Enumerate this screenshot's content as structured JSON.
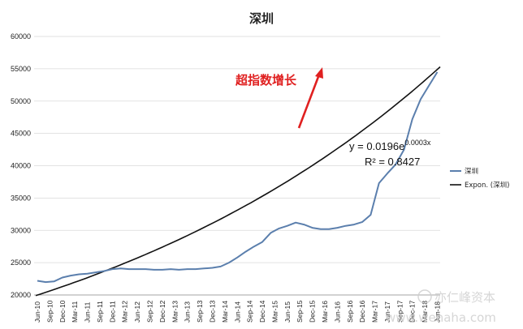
{
  "chart_data": {
    "type": "line",
    "title": "深圳",
    "xlabel": "",
    "ylabel": "",
    "ylim": [
      20000,
      60000
    ],
    "yticks": [
      "20000",
      "25000",
      "30000",
      "35000",
      "40000",
      "45000",
      "50000",
      "55000",
      "60000"
    ],
    "xticks": [
      "Jun-10",
      "Sep-10",
      "Dec-10",
      "Mar-11",
      "Jun-11",
      "Sep-11",
      "Dec-11",
      "Mar-12",
      "Jun-12",
      "Sep-12",
      "Dec-12",
      "Mar-13",
      "Jun-13",
      "Sep-13",
      "Dec-13",
      "Mar-14",
      "Jun-14",
      "Sep-14",
      "Dec-14",
      "Mar-15",
      "Jun-15",
      "Sep-15",
      "Dec-15",
      "Mar-16",
      "Jun-16",
      "Sep-16",
      "Dec-16",
      "Mar-17",
      "Jun-17",
      "Sep-17",
      "Dec-17",
      "Mar-18",
      "Jun-18"
    ],
    "grid": "horizontal",
    "legend_position": "right",
    "series": [
      {
        "name": "深圳",
        "color": "#5b7fad",
        "kind": "data",
        "values": [
          22200,
          22000,
          22100,
          22700,
          23000,
          23200,
          23300,
          23500,
          23700,
          24000,
          24100,
          24000,
          24000,
          24000,
          23900,
          23900,
          24000,
          23900,
          24000,
          24000,
          24100,
          24200,
          24400,
          25000,
          25800,
          26700,
          27500,
          28200,
          29600,
          30300,
          30700,
          31200,
          30900,
          30400,
          30200,
          30200,
          30400,
          30700,
          30900,
          31300,
          32400,
          37300,
          38800,
          40200,
          42500,
          47200,
          50300,
          52400,
          54500
        ]
      },
      {
        "name": "Expon. (深圳)",
        "color": "#111111",
        "kind": "trend",
        "start_value": 19900,
        "end_value": 55300,
        "points": 97
      }
    ],
    "annotations": [
      {
        "text": "超指数增长",
        "color": "#e02020"
      },
      {
        "text": "y = 0.0196e",
        "superscript": "0.0003x"
      },
      {
        "text": "R² = 0.8427"
      }
    ]
  },
  "watermark": {
    "brand": "亦仁峰资本",
    "url": "www.wenaha.com"
  }
}
